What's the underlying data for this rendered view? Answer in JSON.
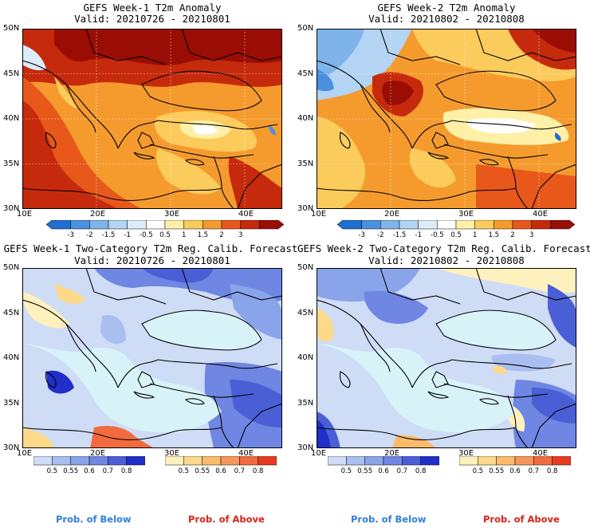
{
  "panels": [
    {
      "title": "GEFS Week-1 T2m Anomaly",
      "valid": "Valid: 20210726 - 20210801"
    },
    {
      "title": "GEFS Week-2 T2m Anomaly",
      "valid": "Valid: 20210802 - 20210808"
    },
    {
      "title": "GEFS Week-1 Two-Category T2m Reg. Calib. Forecast",
      "valid": "Valid: 20210726 - 20210801"
    },
    {
      "title": "GEFS Week-2 Two-Category T2m Reg. Calib. Forecast",
      "valid": "Valid: 20210802 - 20210808"
    }
  ],
  "lat_labels": [
    "50N",
    "45N",
    "40N",
    "35N",
    "30N"
  ],
  "lon_labels": [
    "10E",
    "20E",
    "30E",
    "40E"
  ],
  "anomaly_colorbar": {
    "labels": [
      "-3",
      "-2",
      "-1.5",
      "-1",
      "-0.5",
      "0.5",
      "1",
      "1.5",
      "2",
      "3"
    ],
    "colors": [
      "#1e6fd0",
      "#4a90de",
      "#7fb4ea",
      "#b3d4f3",
      "#dcecf9",
      "#ffffff",
      "#fff0a8",
      "#fbcb5c",
      "#f59b2e",
      "#e7581a",
      "#c62a0c",
      "#9a0d05"
    ]
  },
  "prob_below_colorbar": {
    "labels": [
      "0.5",
      "0.55",
      "0.6",
      "0.7",
      "0.8"
    ],
    "colors": [
      "#cfdcf6",
      "#a9bff0",
      "#8aa4ea",
      "#6f86e2",
      "#4a5fd6",
      "#1f2fc8"
    ]
  },
  "prob_above_colorbar": {
    "labels": [
      "0.5",
      "0.55",
      "0.6",
      "0.7",
      "0.8"
    ],
    "colors": [
      "#fff1bd",
      "#fdd98a",
      "#fbbb6a",
      "#f7955a",
      "#f26b3f",
      "#e83c22"
    ]
  },
  "legend": {
    "below": "Prob. of Below",
    "above": "Prob. of Above"
  },
  "colors": {
    "below_text": "#2f7fd6",
    "above_text": "#d8231a",
    "sea_prob": "#d7f3f8"
  }
}
